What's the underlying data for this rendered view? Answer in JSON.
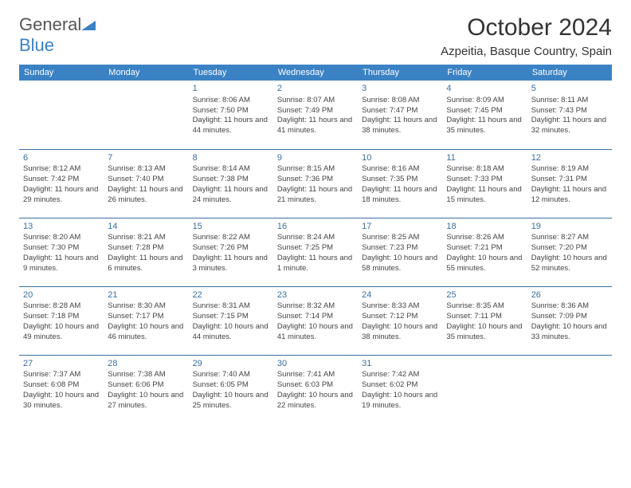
{
  "colors": {
    "brand_blue": "#3b82c4",
    "border_blue": "#3b6fa0",
    "text": "#333333",
    "cell_text": "#444444",
    "bg": "#ffffff"
  },
  "typography": {
    "font_family": "Arial, Helvetica, sans-serif",
    "title_fontsize": 30,
    "location_fontsize": 15,
    "dayhead_fontsize": 11,
    "cell_fontsize": 9.5
  },
  "logo": {
    "text_a": "General",
    "text_b": "Blue"
  },
  "title": "October 2024",
  "location": "Azpeitia, Basque Country, Spain",
  "dayheads": [
    "Sunday",
    "Monday",
    "Tuesday",
    "Wednesday",
    "Thursday",
    "Friday",
    "Saturday"
  ],
  "weeks": [
    [
      null,
      null,
      {
        "n": "1",
        "sr": "Sunrise: 8:06 AM",
        "ss": "Sunset: 7:50 PM",
        "dl": "Daylight: 11 hours and 44 minutes."
      },
      {
        "n": "2",
        "sr": "Sunrise: 8:07 AM",
        "ss": "Sunset: 7:49 PM",
        "dl": "Daylight: 11 hours and 41 minutes."
      },
      {
        "n": "3",
        "sr": "Sunrise: 8:08 AM",
        "ss": "Sunset: 7:47 PM",
        "dl": "Daylight: 11 hours and 38 minutes."
      },
      {
        "n": "4",
        "sr": "Sunrise: 8:09 AM",
        "ss": "Sunset: 7:45 PM",
        "dl": "Daylight: 11 hours and 35 minutes."
      },
      {
        "n": "5",
        "sr": "Sunrise: 8:11 AM",
        "ss": "Sunset: 7:43 PM",
        "dl": "Daylight: 11 hours and 32 minutes."
      }
    ],
    [
      {
        "n": "6",
        "sr": "Sunrise: 8:12 AM",
        "ss": "Sunset: 7:42 PM",
        "dl": "Daylight: 11 hours and 29 minutes."
      },
      {
        "n": "7",
        "sr": "Sunrise: 8:13 AM",
        "ss": "Sunset: 7:40 PM",
        "dl": "Daylight: 11 hours and 26 minutes."
      },
      {
        "n": "8",
        "sr": "Sunrise: 8:14 AM",
        "ss": "Sunset: 7:38 PM",
        "dl": "Daylight: 11 hours and 24 minutes."
      },
      {
        "n": "9",
        "sr": "Sunrise: 8:15 AM",
        "ss": "Sunset: 7:36 PM",
        "dl": "Daylight: 11 hours and 21 minutes."
      },
      {
        "n": "10",
        "sr": "Sunrise: 8:16 AM",
        "ss": "Sunset: 7:35 PM",
        "dl": "Daylight: 11 hours and 18 minutes."
      },
      {
        "n": "11",
        "sr": "Sunrise: 8:18 AM",
        "ss": "Sunset: 7:33 PM",
        "dl": "Daylight: 11 hours and 15 minutes."
      },
      {
        "n": "12",
        "sr": "Sunrise: 8:19 AM",
        "ss": "Sunset: 7:31 PM",
        "dl": "Daylight: 11 hours and 12 minutes."
      }
    ],
    [
      {
        "n": "13",
        "sr": "Sunrise: 8:20 AM",
        "ss": "Sunset: 7:30 PM",
        "dl": "Daylight: 11 hours and 9 minutes."
      },
      {
        "n": "14",
        "sr": "Sunrise: 8:21 AM",
        "ss": "Sunset: 7:28 PM",
        "dl": "Daylight: 11 hours and 6 minutes."
      },
      {
        "n": "15",
        "sr": "Sunrise: 8:22 AM",
        "ss": "Sunset: 7:26 PM",
        "dl": "Daylight: 11 hours and 3 minutes."
      },
      {
        "n": "16",
        "sr": "Sunrise: 8:24 AM",
        "ss": "Sunset: 7:25 PM",
        "dl": "Daylight: 11 hours and 1 minute."
      },
      {
        "n": "17",
        "sr": "Sunrise: 8:25 AM",
        "ss": "Sunset: 7:23 PM",
        "dl": "Daylight: 10 hours and 58 minutes."
      },
      {
        "n": "18",
        "sr": "Sunrise: 8:26 AM",
        "ss": "Sunset: 7:21 PM",
        "dl": "Daylight: 10 hours and 55 minutes."
      },
      {
        "n": "19",
        "sr": "Sunrise: 8:27 AM",
        "ss": "Sunset: 7:20 PM",
        "dl": "Daylight: 10 hours and 52 minutes."
      }
    ],
    [
      {
        "n": "20",
        "sr": "Sunrise: 8:28 AM",
        "ss": "Sunset: 7:18 PM",
        "dl": "Daylight: 10 hours and 49 minutes."
      },
      {
        "n": "21",
        "sr": "Sunrise: 8:30 AM",
        "ss": "Sunset: 7:17 PM",
        "dl": "Daylight: 10 hours and 46 minutes."
      },
      {
        "n": "22",
        "sr": "Sunrise: 8:31 AM",
        "ss": "Sunset: 7:15 PM",
        "dl": "Daylight: 10 hours and 44 minutes."
      },
      {
        "n": "23",
        "sr": "Sunrise: 8:32 AM",
        "ss": "Sunset: 7:14 PM",
        "dl": "Daylight: 10 hours and 41 minutes."
      },
      {
        "n": "24",
        "sr": "Sunrise: 8:33 AM",
        "ss": "Sunset: 7:12 PM",
        "dl": "Daylight: 10 hours and 38 minutes."
      },
      {
        "n": "25",
        "sr": "Sunrise: 8:35 AM",
        "ss": "Sunset: 7:11 PM",
        "dl": "Daylight: 10 hours and 35 minutes."
      },
      {
        "n": "26",
        "sr": "Sunrise: 8:36 AM",
        "ss": "Sunset: 7:09 PM",
        "dl": "Daylight: 10 hours and 33 minutes."
      }
    ],
    [
      {
        "n": "27",
        "sr": "Sunrise: 7:37 AM",
        "ss": "Sunset: 6:08 PM",
        "dl": "Daylight: 10 hours and 30 minutes."
      },
      {
        "n": "28",
        "sr": "Sunrise: 7:38 AM",
        "ss": "Sunset: 6:06 PM",
        "dl": "Daylight: 10 hours and 27 minutes."
      },
      {
        "n": "29",
        "sr": "Sunrise: 7:40 AM",
        "ss": "Sunset: 6:05 PM",
        "dl": "Daylight: 10 hours and 25 minutes."
      },
      {
        "n": "30",
        "sr": "Sunrise: 7:41 AM",
        "ss": "Sunset: 6:03 PM",
        "dl": "Daylight: 10 hours and 22 minutes."
      },
      {
        "n": "31",
        "sr": "Sunrise: 7:42 AM",
        "ss": "Sunset: 6:02 PM",
        "dl": "Daylight: 10 hours and 19 minutes."
      },
      null,
      null
    ]
  ]
}
